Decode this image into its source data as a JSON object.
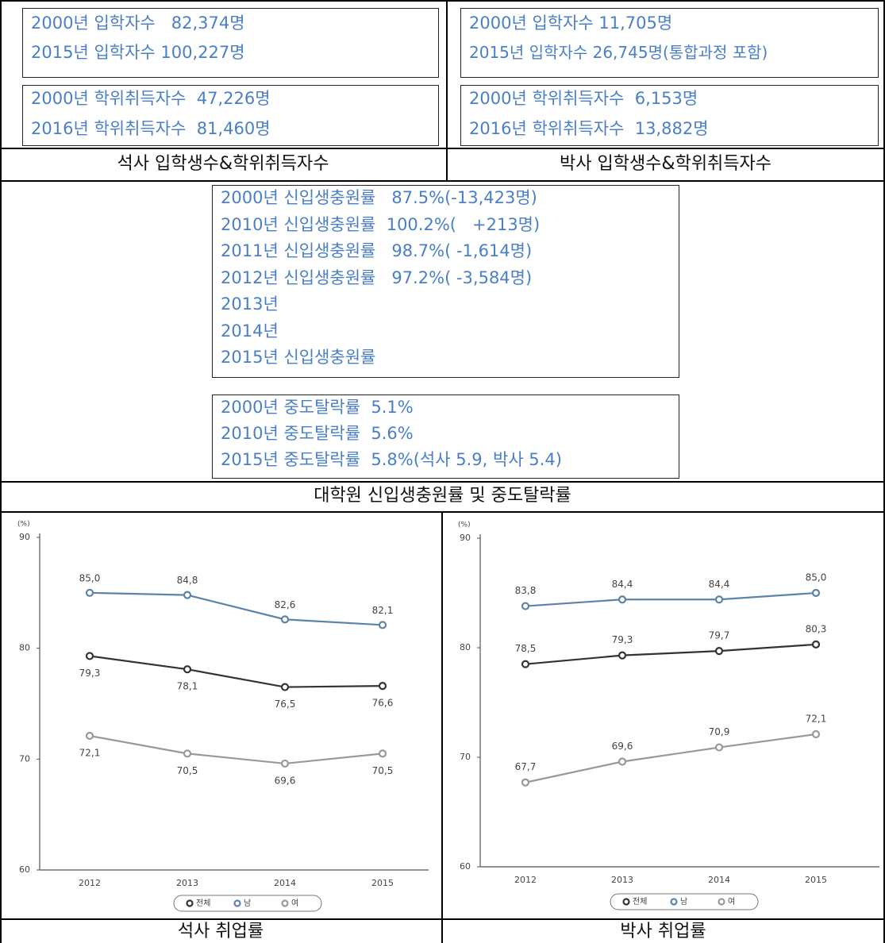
{
  "sections": [
    {
      "boxes": [
        {
          "lines": [
            "2000년 입학자수   82,374명",
            "2015년 입학자수 100,227명"
          ]
        },
        {
          "lines": [
            "2000년 학위취득자수  47,226명",
            "2016년 학위취득자수  81,460명"
          ]
        }
      ],
      "caption": "석사 입학생수&학위취득자수"
    },
    {
      "boxes": [
        {
          "lines": [
            "2000년 입학자수 11,705명",
            "2015년 입학자수 26,745명(통합과정 포함)"
          ]
        },
        {
          "lines": [
            "2000년 학위취득자수  6,153명",
            "2016년 학위취득자수  13,882명"
          ]
        }
      ],
      "caption": "박사 입학생수&학위취득자수"
    },
    {
      "boxes": [
        {
          "lines": [
            "2000년 신입생충원률   87.5%(-13,423명)",
            "2010년 신입생충원률  100.2%(   +213명)",
            "2011년 신입생충원률   98.7%( -1,614명)",
            "2012년 신입생충원률   97.2%( -3,584명)",
            "2013년",
            "2014년",
            "2015년 신입생충원률"
          ]
        },
        {
          "lines": [
            "2000년 중도탈락률  5.1%",
            "2010년 중도탈락률  5.6%",
            "2015년 중도탈락률  5.8%(석사 5.9, 박사 5.4)"
          ]
        }
      ],
      "caption": "대학원 신입생충원률 및 중도탈락률"
    }
  ],
  "chart_data": [
    {
      "type": "line",
      "y_label": "(%)",
      "categories": [
        "2012",
        "2013",
        "2014",
        "2015"
      ],
      "ylim": [
        60,
        90
      ],
      "yticks": [
        60,
        70,
        80,
        90
      ],
      "series": [
        {
          "name": "전체",
          "color": "#333333",
          "values": [
            79.3,
            78.1,
            76.5,
            76.6
          ],
          "value_labels": [
            "79,3",
            "78,1",
            "76,5",
            "76,6"
          ]
        },
        {
          "name": "남",
          "color": "#5d84a8",
          "values": [
            85.0,
            84.8,
            82.6,
            82.1
          ],
          "value_labels": [
            "85,0",
            "84,8",
            "82,6",
            "82,1"
          ]
        },
        {
          "name": "여",
          "color": "#999999",
          "values": [
            72.1,
            70.5,
            69.6,
            70.5
          ],
          "value_labels": [
            "72,1",
            "70,5",
            "69,6",
            "70,5"
          ]
        }
      ],
      "caption": "석사 취업률"
    },
    {
      "type": "line",
      "y_label": "(%)",
      "categories": [
        "2012",
        "2013",
        "2014",
        "2015"
      ],
      "ylim": [
        60,
        90
      ],
      "yticks": [
        60,
        70,
        80,
        90
      ],
      "series": [
        {
          "name": "전체",
          "color": "#333333",
          "values": [
            78.5,
            79.3,
            79.7,
            80.3
          ],
          "value_labels": [
            "78,5",
            "79,3",
            "79,7",
            "80,3"
          ]
        },
        {
          "name": "남",
          "color": "#5d84a8",
          "values": [
            83.8,
            84.4,
            84.4,
            85.0
          ],
          "value_labels": [
            "83,8",
            "84,4",
            "84,4",
            "85,0"
          ]
        },
        {
          "name": "여",
          "color": "#999999",
          "values": [
            67.7,
            69.6,
            70.9,
            72.1
          ],
          "value_labels": [
            "67,7",
            "69,6",
            "70,9",
            "72,1"
          ]
        }
      ],
      "caption": "박사 취업률"
    }
  ]
}
